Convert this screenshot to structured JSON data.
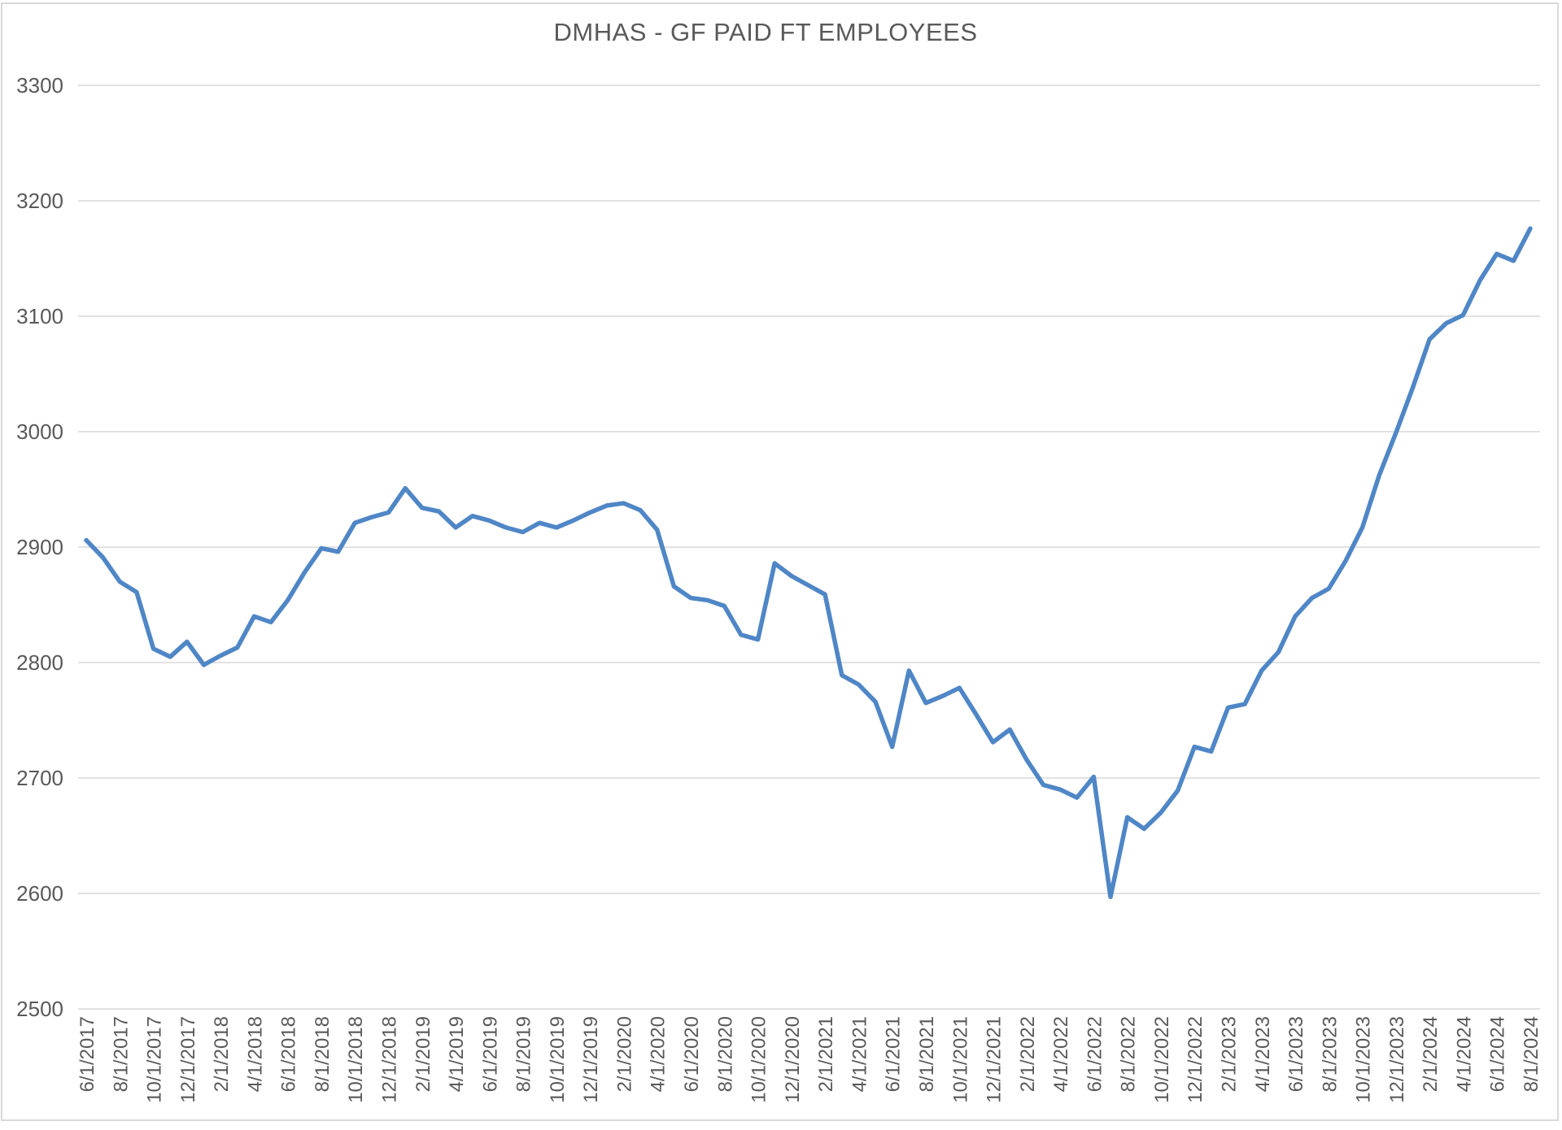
{
  "chart_data": {
    "type": "line",
    "title": "DMHAS - GF PAID FT EMPLOYEES",
    "xlabel": "",
    "ylabel": "",
    "legend": "none",
    "grid": "horizontal",
    "ylim": [
      2500,
      3300
    ],
    "y_ticks": [
      2500,
      2600,
      2700,
      2800,
      2900,
      3000,
      3100,
      3200,
      3300
    ],
    "x": [
      "6/1/2017",
      "7/1/2017",
      "8/1/2017",
      "9/1/2017",
      "10/1/2017",
      "11/1/2017",
      "12/1/2017",
      "1/1/2018",
      "2/1/2018",
      "3/1/2018",
      "4/1/2018",
      "5/1/2018",
      "6/1/2018",
      "7/1/2018",
      "8/1/2018",
      "9/1/2018",
      "10/1/2018",
      "11/1/2018",
      "12/1/2018",
      "1/1/2019",
      "2/1/2019",
      "3/1/2019",
      "4/1/2019",
      "5/1/2019",
      "6/1/2019",
      "7/1/2019",
      "8/1/2019",
      "9/1/2019",
      "10/1/2019",
      "11/1/2019",
      "12/1/2019",
      "1/1/2020",
      "2/1/2020",
      "3/1/2020",
      "4/1/2020",
      "5/1/2020",
      "6/1/2020",
      "7/1/2020",
      "8/1/2020",
      "9/1/2020",
      "10/1/2020",
      "11/1/2020",
      "12/1/2020",
      "1/1/2021",
      "2/1/2021",
      "3/1/2021",
      "4/1/2021",
      "5/1/2021",
      "6/1/2021",
      "7/1/2021",
      "8/1/2021",
      "9/1/2021",
      "10/1/2021",
      "11/1/2021",
      "12/1/2021",
      "1/1/2022",
      "2/1/2022",
      "3/1/2022",
      "4/1/2022",
      "5/1/2022",
      "6/1/2022",
      "7/1/2022",
      "8/1/2022",
      "9/1/2022",
      "10/1/2022",
      "11/1/2022",
      "12/1/2022",
      "1/1/2023",
      "2/1/2023",
      "3/1/2023",
      "4/1/2023",
      "5/1/2023",
      "6/1/2023",
      "7/1/2023",
      "8/1/2023",
      "9/1/2023",
      "10/1/2023",
      "11/1/2023",
      "12/1/2023",
      "1/1/2024",
      "2/1/2024",
      "3/1/2024",
      "4/1/2024",
      "5/1/2024",
      "6/1/2024",
      "7/1/2024",
      "8/1/2024"
    ],
    "values": [
      2906,
      2891,
      2870,
      2861,
      2812,
      2805,
      2818,
      2798,
      2806,
      2813,
      2840,
      2835,
      2854,
      2878,
      2899,
      2896,
      2921,
      2926,
      2930,
      2951,
      2934,
      2931,
      2917,
      2927,
      2923,
      2917,
      2913,
      2921,
      2917,
      2923,
      2930,
      2936,
      2938,
      2932,
      2915,
      2866,
      2856,
      2854,
      2849,
      2824,
      2820,
      2886,
      2875,
      2867,
      2859,
      2789,
      2781,
      2766,
      2727,
      2793,
      2765,
      2771,
      2778,
      2755,
      2731,
      2742,
      2716,
      2694,
      2690,
      2683,
      2701,
      2597,
      2666,
      2656,
      2670,
      2689,
      2727,
      2723,
      2761,
      2764,
      2793,
      2809,
      2840,
      2856,
      2864,
      2888,
      2917,
      2962,
      2999,
      3038,
      3080,
      3094,
      3101,
      3131,
      3154,
      3148,
      3176
    ],
    "x_tick_labels": [
      "6/1/2017",
      "8/1/2017",
      "10/1/2017",
      "12/1/2017",
      "2/1/2018",
      "4/1/2018",
      "6/1/2018",
      "8/1/2018",
      "10/1/2018",
      "12/1/2018",
      "2/1/2019",
      "4/1/2019",
      "6/1/2019",
      "8/1/2019",
      "10/1/2019",
      "12/1/2019",
      "2/1/2020",
      "4/1/2020",
      "6/1/2020",
      "8/1/2020",
      "10/1/2020",
      "12/1/2020",
      "2/1/2021",
      "4/1/2021",
      "6/1/2021",
      "8/1/2021",
      "10/1/2021",
      "12/1/2021",
      "2/1/2022",
      "4/1/2022",
      "6/1/2022",
      "8/1/2022",
      "10/1/2022",
      "12/1/2022",
      "2/1/2023",
      "4/1/2023",
      "6/1/2023",
      "8/1/2023",
      "10/1/2023",
      "12/1/2023",
      "2/1/2024",
      "4/1/2024",
      "6/1/2024",
      "8/1/2024"
    ],
    "colors": {
      "line": "#4F86C6",
      "gridline": "#D9D9D9",
      "tick_label": "#595959",
      "title": "#595959",
      "frame_border": "#D9D9D9",
      "background": "#FFFFFF"
    }
  }
}
